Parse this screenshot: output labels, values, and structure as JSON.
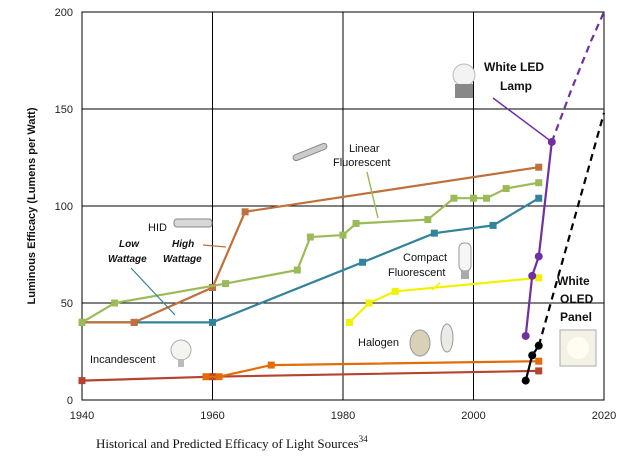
{
  "chart_data": {
    "type": "line",
    "title": "",
    "xlabel": "Historical and Predicted Efficacy of Light Sources",
    "xlabel_superscript": "34",
    "ylabel": "Luminous Efficacy (Lumens per Watt)",
    "xlim": [
      1940,
      2020
    ],
    "ylim": [
      0,
      200
    ],
    "xticks": [
      "1940",
      "1960",
      "1980",
      "2000",
      "2020"
    ],
    "yticks": [
      "0",
      "50",
      "100",
      "150",
      "200"
    ],
    "grid": true,
    "series": [
      {
        "name": "Incandescent",
        "color": "#b4432f",
        "x": [
          1940,
          1960,
          2010
        ],
        "y": [
          10,
          12,
          15
        ]
      },
      {
        "name": "Halogen",
        "color": "#e36c09",
        "x": [
          1959,
          1961,
          1969,
          2010
        ],
        "y": [
          12,
          12,
          18,
          20
        ]
      },
      {
        "name": "HID Low Wattage",
        "color": "#31849b",
        "x": [
          1940,
          1948,
          1960,
          1983,
          1994,
          2003,
          2010
        ],
        "y": [
          40,
          40,
          40,
          71,
          86,
          90,
          104
        ]
      },
      {
        "name": "HID High Wattage",
        "color": "#c0703a",
        "x": [
          1940,
          1948,
          1960,
          1965,
          2010
        ],
        "y": [
          40,
          40,
          58,
          97,
          120
        ]
      },
      {
        "name": "Linear Fluorescent",
        "color": "#9bbb59",
        "x": [
          1940,
          1945,
          1962,
          1973,
          1975,
          1980,
          1982,
          1993,
          1997,
          2000,
          2002,
          2005,
          2010
        ],
        "y": [
          40,
          50,
          60,
          67,
          84,
          85,
          91,
          93,
          104,
          104,
          104,
          109,
          112
        ]
      },
      {
        "name": "Compact Fluorescent",
        "color": "#f2f200",
        "x": [
          1981,
          1984,
          1988,
          2010
        ],
        "y": [
          40,
          50,
          56,
          63
        ]
      },
      {
        "name": "White LED Lamp",
        "color": "#7030a0",
        "x": [
          2008,
          2009,
          2010,
          2012
        ],
        "y": [
          33,
          64,
          74,
          133
        ]
      },
      {
        "name": "White LED Lamp (predicted)",
        "color": "#7030a0",
        "dashed": true,
        "x": [
          2012,
          2015,
          2018,
          2020
        ],
        "y": [
          133,
          160,
          185,
          200
        ]
      },
      {
        "name": "White OLED Panel",
        "color": "#000000",
        "x": [
          2008,
          2009,
          2010
        ],
        "y": [
          10,
          23,
          28
        ]
      },
      {
        "name": "White OLED Panel (predicted)",
        "color": "#000000",
        "dashed": true,
        "x": [
          2010,
          2015,
          2020
        ],
        "y": [
          28,
          88,
          148
        ]
      }
    ],
    "annotations": {
      "incandescent": "Incandescent",
      "halogen": "Halogen",
      "hid": "HID",
      "low": "Low",
      "low2": "Wattage",
      "high": "High",
      "high2": "Wattage",
      "linear1": "Linear",
      "linear2": "Fluorescent",
      "compact1": "Compact",
      "compact2": "Fluorescent",
      "led1": "White LED",
      "led2": "Lamp",
      "oled1": "White",
      "oled2": "OLED",
      "oled3": "Panel"
    }
  }
}
